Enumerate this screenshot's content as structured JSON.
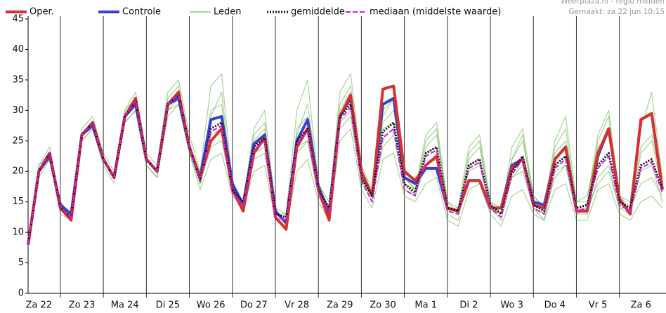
{
  "chart_data": {
    "type": "line",
    "source": "Weerplaza.nl - regio midden",
    "created": "Gemaakt: za 22 jun 10:15",
    "x": [
      6,
      12,
      18,
      24,
      30,
      36,
      42,
      48,
      54,
      60,
      66,
      72,
      78,
      84,
      90,
      96,
      102,
      108,
      114,
      120,
      126,
      132,
      138,
      144,
      150,
      156,
      162,
      168,
      174,
      180,
      186,
      192,
      198,
      204,
      210,
      216,
      222,
      228,
      234,
      240,
      246,
      252,
      258,
      264,
      270,
      276,
      282,
      288,
      294,
      300,
      306,
      312,
      318,
      324,
      330,
      336,
      342,
      348,
      354,
      360
    ],
    "xlim": [
      6,
      362
    ],
    "xticks": [
      {
        "value": 12,
        "label": "Za 22"
      },
      {
        "value": 36,
        "label": "Zo 23"
      },
      {
        "value": 60,
        "label": "Ma 24"
      },
      {
        "value": 84,
        "label": "Di 25"
      },
      {
        "value": 108,
        "label": "Wo 26"
      },
      {
        "value": 132,
        "label": "Do 27"
      },
      {
        "value": 156,
        "label": "Vr 28"
      },
      {
        "value": 180,
        "label": "Za 29"
      },
      {
        "value": 204,
        "label": "Zo 30"
      },
      {
        "value": 228,
        "label": "Ma 1"
      },
      {
        "value": 252,
        "label": "Di 2"
      },
      {
        "value": 276,
        "label": "Wo 3"
      },
      {
        "value": 300,
        "label": "Do 4"
      },
      {
        "value": 324,
        "label": "Vr 5"
      },
      {
        "value": 348,
        "label": "Za 6"
      }
    ],
    "ylim": [
      0,
      45
    ],
    "yticks": [
      0,
      5,
      10,
      15,
      20,
      25,
      30,
      35,
      40,
      45
    ],
    "series": [
      {
        "name": "Oper.",
        "color": "#d93030",
        "style": "solid",
        "width": 4,
        "values": [
          8,
          20,
          23,
          14,
          12,
          26,
          28,
          22,
          19,
          29,
          32,
          22,
          20,
          31,
          33,
          24,
          19,
          25,
          27,
          17,
          13.5,
          23,
          25.5,
          12.5,
          10.5,
          24,
          27,
          17,
          12,
          29,
          32.5,
          20,
          16,
          33.5,
          34,
          20,
          18.5,
          21,
          22.5,
          14,
          13.5,
          18.5,
          18.5,
          14,
          14,
          20.5,
          22,
          14.5,
          14,
          22,
          24,
          13.5,
          13.5,
          23,
          27,
          15.5,
          13,
          28.5,
          29.5,
          17
        ]
      },
      {
        "name": "Controle",
        "color": "#3a3fd0",
        "style": "solid",
        "width": 4,
        "values": [
          8,
          20,
          22.5,
          14.5,
          13,
          26,
          27.5,
          22,
          19,
          29,
          31,
          22,
          20,
          31,
          32,
          24,
          19,
          28.5,
          29,
          18,
          14.5,
          24.5,
          26,
          13.5,
          11.5,
          25,
          28.5,
          17.5,
          13,
          29,
          32,
          20,
          16,
          31,
          32,
          19,
          18,
          20.5,
          20.5,
          14,
          13.5,
          18.5,
          18.5,
          14,
          14,
          21,
          22,
          15,
          14.5,
          22,
          24,
          13.5,
          13.5,
          22.5,
          27,
          15.5,
          13,
          28.5,
          29.5,
          17
        ]
      },
      {
        "name": "Leden",
        "color": "#3f9f1f",
        "style": "thin",
        "width": 1.2,
        "members": [
          [
            8,
            21,
            24,
            15,
            13,
            27,
            29,
            23,
            20,
            30,
            33,
            23,
            21,
            33,
            35,
            26,
            20,
            34,
            36,
            18,
            15,
            27,
            30,
            14,
            13,
            30,
            35,
            18,
            14,
            33,
            36,
            21,
            17,
            30,
            32,
            19,
            17,
            26,
            28,
            15,
            14,
            24,
            26,
            15,
            13,
            24,
            27,
            16,
            14,
            25,
            29,
            15,
            15,
            26,
            30,
            16,
            15,
            27,
            33,
            19
          ],
          [
            8,
            19,
            22,
            13,
            12,
            25,
            27,
            21,
            18,
            28,
            30,
            21,
            19,
            29,
            31,
            23,
            17,
            22,
            23,
            16,
            14,
            20,
            21,
            12,
            11,
            20,
            22,
            15,
            12,
            25,
            27,
            17,
            14,
            22,
            23,
            16,
            15,
            18,
            19,
            12,
            11,
            17,
            18,
            13,
            11,
            16,
            17,
            13,
            12,
            17,
            18,
            12,
            12,
            17,
            18,
            13,
            12,
            15,
            16,
            14
          ],
          [
            8,
            20,
            23,
            14,
            12,
            26,
            28,
            22,
            19,
            29,
            31,
            22,
            20,
            31,
            32,
            24,
            19,
            30,
            31,
            17,
            15,
            25,
            27,
            13,
            12,
            27,
            29,
            17,
            14,
            30,
            33,
            19,
            16,
            28,
            30,
            19,
            17,
            24,
            26,
            15,
            13,
            22,
            24,
            15,
            14,
            22,
            25,
            16,
            14,
            23,
            25,
            15,
            16,
            24,
            26,
            16,
            14,
            24,
            26,
            18
          ],
          [
            8,
            20,
            23,
            14,
            13,
            26,
            28,
            22,
            19,
            29,
            32,
            22,
            20,
            30,
            32,
            24,
            18,
            24,
            25,
            17,
            15,
            22,
            23,
            13,
            13,
            23,
            25,
            17,
            14,
            27,
            29,
            18,
            16,
            24,
            26,
            17,
            16,
            21,
            22,
            14,
            14,
            20,
            21,
            14,
            13,
            19,
            21,
            14,
            13,
            19,
            21,
            13,
            14,
            18,
            20,
            14,
            14,
            18,
            19,
            16
          ],
          [
            8,
            21,
            23,
            14,
            12,
            26,
            28,
            22,
            19,
            30,
            32,
            22,
            20,
            32,
            34,
            24,
            19,
            29,
            33,
            17,
            15,
            26,
            28,
            13,
            12,
            26,
            31,
            18,
            15,
            31,
            34,
            19,
            15,
            29,
            32,
            18,
            17,
            25,
            27,
            14,
            13,
            23,
            25,
            14,
            13,
            22,
            26,
            15,
            13,
            24,
            27,
            14,
            14,
            25,
            29,
            15,
            13,
            23,
            25,
            17
          ],
          [
            8,
            20,
            22,
            14,
            12,
            25,
            27,
            22,
            19,
            28,
            30,
            21,
            19,
            30,
            31,
            23,
            18,
            26,
            27,
            17,
            14,
            23,
            24,
            13,
            12,
            24,
            25,
            16,
            13,
            28,
            30,
            19,
            16,
            27,
            28,
            18,
            16,
            23,
            24,
            13,
            12,
            21,
            22,
            14,
            12,
            19,
            20,
            14,
            12,
            20,
            21,
            13,
            13,
            19,
            21,
            14,
            13,
            20,
            21,
            15
          ]
        ]
      },
      {
        "name": "gemiddelde",
        "color": "#111111",
        "style": "dotted",
        "width": 3,
        "values": [
          8,
          20,
          23,
          14,
          12.5,
          26,
          28,
          22,
          19,
          29,
          31.5,
          22,
          20,
          31,
          32.5,
          24,
          18.5,
          27,
          28,
          17,
          15,
          24,
          25.5,
          13,
          12.5,
          25,
          27,
          17,
          14,
          29,
          31,
          19,
          16,
          26.5,
          28,
          18,
          16.5,
          23,
          24,
          14,
          13.5,
          21,
          22,
          14.5,
          13,
          20,
          22.5,
          14.5,
          13.5,
          21,
          22.5,
          14,
          14.5,
          21,
          23,
          15,
          14,
          21,
          22,
          17
        ]
      },
      {
        "name": "mediaan (middelste waarde)",
        "color": "#d020d0",
        "style": "dashed",
        "width": 2,
        "values": [
          8,
          20,
          23,
          14,
          12.5,
          26,
          28,
          22,
          19,
          29,
          31.5,
          22,
          20,
          31,
          32.5,
          24,
          18.5,
          26.5,
          27.5,
          16.5,
          14.5,
          23.5,
          25,
          12.5,
          12,
          24.5,
          26.5,
          16.5,
          13.5,
          28.5,
          30.5,
          18.5,
          15,
          25.5,
          27,
          17,
          16,
          22.5,
          23.5,
          13.5,
          13,
          20.5,
          21.5,
          14,
          12.5,
          19.5,
          22,
          14,
          13,
          20.5,
          22,
          13.5,
          14,
          20.5,
          22.5,
          14.5,
          13.5,
          20.5,
          21.5,
          16.5
        ]
      }
    ]
  }
}
